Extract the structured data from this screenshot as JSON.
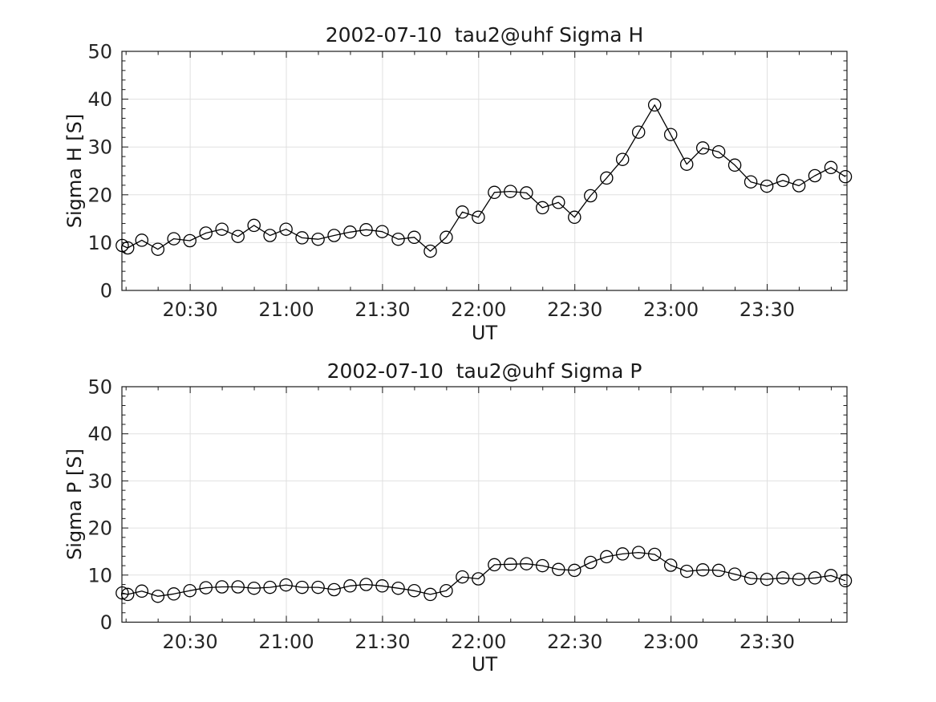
{
  "page": {
    "background": "#ffffff",
    "line_color": "#000000",
    "axis_color": "#1a1a1a",
    "grid_color": "#e0e0e0",
    "text_color": "#262626"
  },
  "chart_data": [
    {
      "type": "line",
      "title": "2002-07-10  tau2@uhf Sigma H",
      "xlabel": "UT",
      "ylabel": "Sigma H [S]",
      "marker": "circle",
      "grid": true,
      "legend": "none",
      "ylim": [
        0,
        50
      ],
      "y_ticks": [
        0,
        10,
        20,
        30,
        40,
        50
      ],
      "y_minor_step": 2,
      "xlim_minutes_after_2000": [
        8.7,
        234.9
      ],
      "x_major_ticks_minutes": [
        30,
        60,
        90,
        120,
        150,
        180,
        210
      ],
      "x_tick_labels": [
        "20:30",
        "21:00",
        "21:30",
        "22:00",
        "22:30",
        "23:00",
        "23:30"
      ],
      "x_minor_step_minutes": 10,
      "x_minutes_after_2000": [
        8.8,
        10.5,
        14.9,
        19.9,
        24.9,
        29.9,
        34.9,
        39.9,
        44.9,
        49.9,
        54.9,
        59.9,
        64.9,
        69.9,
        74.9,
        79.9,
        84.9,
        89.9,
        94.9,
        99.9,
        104.9,
        109.9,
        114.9,
        119.9,
        124.9,
        129.9,
        134.9,
        139.9,
        144.9,
        149.9,
        154.9,
        159.9,
        164.9,
        169.9,
        174.9,
        179.9,
        184.9,
        189.9,
        194.9,
        199.9,
        204.9,
        209.9,
        214.9,
        219.9,
        224.9,
        229.9,
        234.4
      ],
      "values": [
        9.4,
        8.9,
        10.5,
        8.6,
        10.8,
        10.4,
        12.0,
        12.8,
        11.3,
        13.6,
        11.5,
        12.8,
        11.0,
        10.7,
        11.5,
        12.2,
        12.7,
        12.3,
        10.7,
        11.1,
        8.2,
        11.1,
        16.4,
        15.3,
        20.5,
        20.7,
        20.4,
        17.3,
        18.4,
        15.3,
        19.8,
        23.5,
        27.4,
        33.1,
        38.8,
        32.6,
        26.4,
        29.8,
        29.0,
        26.2,
        22.7,
        21.8,
        23.0,
        21.9,
        24.0,
        25.7,
        23.8
      ]
    },
    {
      "type": "line",
      "title": "2002-07-10  tau2@uhf Sigma P",
      "xlabel": "UT",
      "ylabel": "Sigma P [S]",
      "marker": "circle",
      "grid": true,
      "legend": "none",
      "ylim": [
        0,
        50
      ],
      "y_ticks": [
        0,
        10,
        20,
        30,
        40,
        50
      ],
      "y_minor_step": 2,
      "xlim_minutes_after_2000": [
        8.7,
        234.9
      ],
      "x_major_ticks_minutes": [
        30,
        60,
        90,
        120,
        150,
        180,
        210
      ],
      "x_tick_labels": [
        "20:30",
        "21:00",
        "21:30",
        "22:00",
        "22:30",
        "23:00",
        "23:30"
      ],
      "x_minor_step_minutes": 10,
      "x_minutes_after_2000": [
        8.8,
        10.5,
        14.9,
        19.9,
        24.9,
        29.9,
        34.9,
        39.9,
        44.9,
        49.9,
        54.9,
        59.9,
        64.9,
        69.9,
        74.9,
        79.9,
        84.9,
        89.9,
        94.9,
        99.9,
        104.9,
        109.9,
        114.9,
        119.9,
        124.9,
        129.9,
        134.9,
        139.9,
        144.9,
        149.9,
        154.9,
        159.9,
        164.9,
        169.9,
        174.9,
        179.9,
        184.9,
        189.9,
        194.9,
        199.9,
        204.9,
        209.9,
        214.9,
        219.9,
        224.9,
        229.9,
        234.4
      ],
      "values": [
        6.2,
        5.9,
        6.6,
        5.5,
        6.0,
        6.7,
        7.3,
        7.5,
        7.5,
        7.2,
        7.4,
        7.9,
        7.4,
        7.4,
        6.9,
        7.7,
        8.0,
        7.7,
        7.2,
        6.7,
        5.9,
        6.7,
        9.6,
        9.2,
        12.2,
        12.3,
        12.4,
        12.0,
        11.2,
        11.0,
        12.7,
        13.9,
        14.5,
        14.8,
        14.4,
        12.1,
        10.8,
        11.1,
        11.0,
        10.2,
        9.3,
        9.1,
        9.4,
        9.1,
        9.4,
        9.9,
        8.8
      ]
    }
  ]
}
